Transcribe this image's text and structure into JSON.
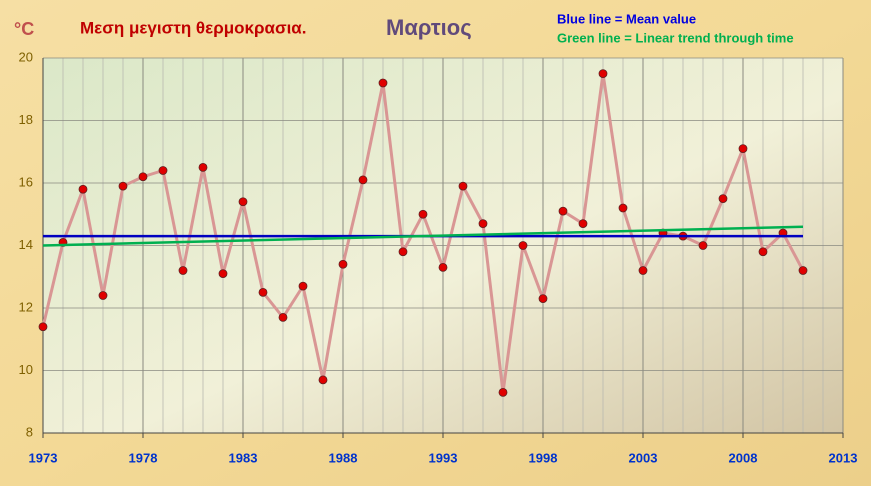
{
  "chart_data": {
    "type": "line",
    "title": "Μεση μεγιστη θερμοκρασια.",
    "subtitle": "Μαρτιος",
    "y_label": "°C",
    "x": [
      1973,
      1974,
      1975,
      1976,
      1977,
      1978,
      1979,
      1980,
      1981,
      1982,
      1983,
      1984,
      1985,
      1986,
      1987,
      1988,
      1989,
      1990,
      1991,
      1992,
      1993,
      1994,
      1995,
      1996,
      1997,
      1998,
      1999,
      2000,
      2001,
      2002,
      2003,
      2004,
      2005,
      2006,
      2007,
      2008,
      2009,
      2010,
      2011
    ],
    "series": [
      {
        "color": "#d99694",
        "marker_color": "#e00000",
        "values": [
          11.4,
          14.1,
          15.8,
          12.4,
          15.9,
          16.2,
          16.4,
          13.2,
          16.5,
          13.1,
          15.4,
          12.5,
          11.7,
          12.7,
          9.7,
          13.4,
          16.1,
          19.2,
          13.8,
          15.0,
          13.3,
          15.9,
          14.7,
          9.3,
          14.0,
          12.3,
          15.1,
          14.7,
          19.5,
          15.2,
          13.2,
          14.4,
          14.3,
          14.0,
          15.5,
          17.1,
          13.8,
          14.4,
          13.2
        ]
      },
      {
        "name": "Blue line = Mean value",
        "color": "#0000c0",
        "x": [
          1973,
          2011
        ],
        "values": [
          14.3,
          14.3
        ]
      },
      {
        "name": "Green line = Linear  trend through time",
        "color": "#00b050",
        "x": [
          1973,
          2011
        ],
        "values": [
          14.0,
          14.6
        ]
      }
    ],
    "xlim": [
      1973,
      2013
    ],
    "xticks": [
      1973,
      1978,
      1983,
      1988,
      1993,
      1998,
      2003,
      2008,
      2013
    ],
    "ylim": [
      8,
      20
    ],
    "yticks": [
      8,
      10,
      12,
      14,
      16,
      18,
      20
    ],
    "grid": true,
    "minor_x_grid": true
  }
}
